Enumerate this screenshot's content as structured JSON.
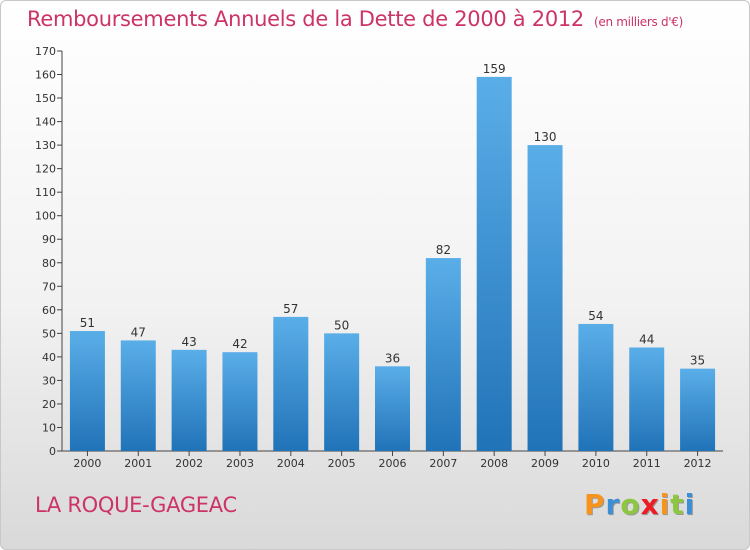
{
  "header": {
    "title": "Remboursements Annuels de la Dette de 2000 à 2012",
    "subtitle": "(en milliers d'€)"
  },
  "footer": {
    "commune": "LA ROQUE-GAGEAC",
    "brand": "Proxiti",
    "brand_colors": [
      "#f7941d",
      "#3a8fd6",
      "#8dc63f",
      "#ed1c24",
      "#f7941d",
      "#8dc63f",
      "#3a8fd6"
    ]
  },
  "colors": {
    "accent": "#cc3366",
    "bar_top": "#5aaee8",
    "bar_bottom": "#2173b8",
    "axis": "#444444"
  },
  "chart_data": {
    "type": "bar",
    "title": "Remboursements Annuels de la Dette de 2000 à 2012",
    "xlabel": "",
    "ylabel": "",
    "categories": [
      "2000",
      "2001",
      "2002",
      "2003",
      "2004",
      "2005",
      "2006",
      "2007",
      "2008",
      "2009",
      "2010",
      "2011",
      "2012"
    ],
    "values": [
      51,
      47,
      43,
      42,
      57,
      50,
      36,
      82,
      159,
      130,
      54,
      44,
      35
    ],
    "ylim": [
      0,
      170
    ],
    "yticks": [
      0,
      10,
      20,
      30,
      40,
      50,
      60,
      70,
      80,
      90,
      100,
      110,
      120,
      130,
      140,
      150,
      160,
      170
    ],
    "grid": false,
    "data_labels": true
  }
}
